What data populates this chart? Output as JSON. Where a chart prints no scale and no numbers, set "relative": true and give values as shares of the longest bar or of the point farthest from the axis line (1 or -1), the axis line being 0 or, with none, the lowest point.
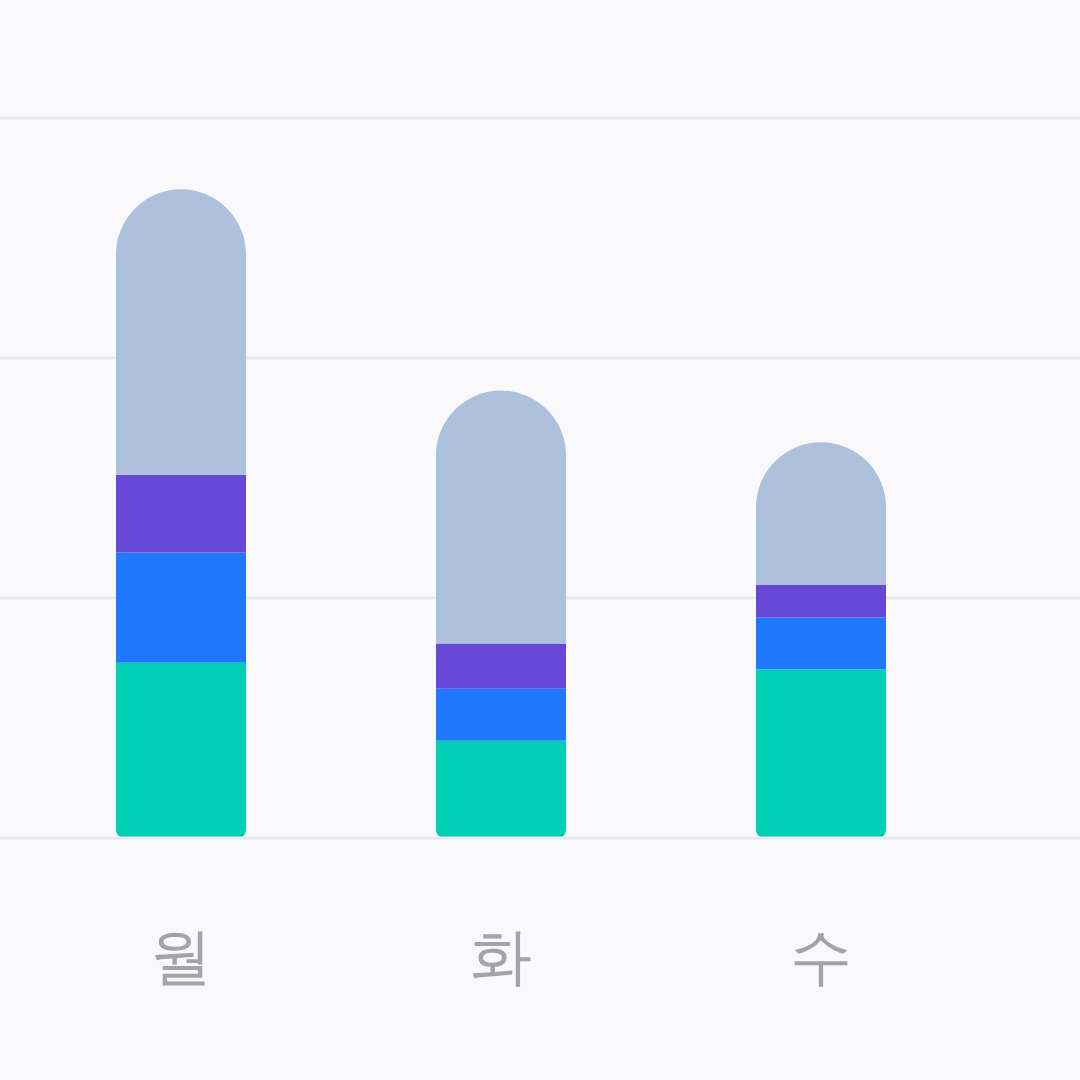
{
  "chart_data": {
    "type": "bar",
    "stacked": true,
    "relative": true,
    "categories": [
      "월",
      "화",
      "수"
    ],
    "series": [
      {
        "color": "#00cfb5",
        "values": [
          0.27,
          0.15,
          0.26
        ]
      },
      {
        "color": "#1f78ff",
        "values": [
          0.17,
          0.08,
          0.08
        ]
      },
      {
        "color": "#6647d6",
        "values": [
          0.12,
          0.07,
          0.05
        ]
      },
      {
        "color": "#adc0dc",
        "values": [
          0.44,
          0.39,
          0.22
        ]
      }
    ],
    "ref_lines": [
      {
        "axis": "y",
        "value": 0.37,
        "color": "#e9e9ef"
      },
      {
        "axis": "y",
        "value": 0.74,
        "color": "#e9e9ef"
      },
      {
        "axis": "y",
        "value": 1.11,
        "color": "#e9e9ef"
      }
    ]
  }
}
